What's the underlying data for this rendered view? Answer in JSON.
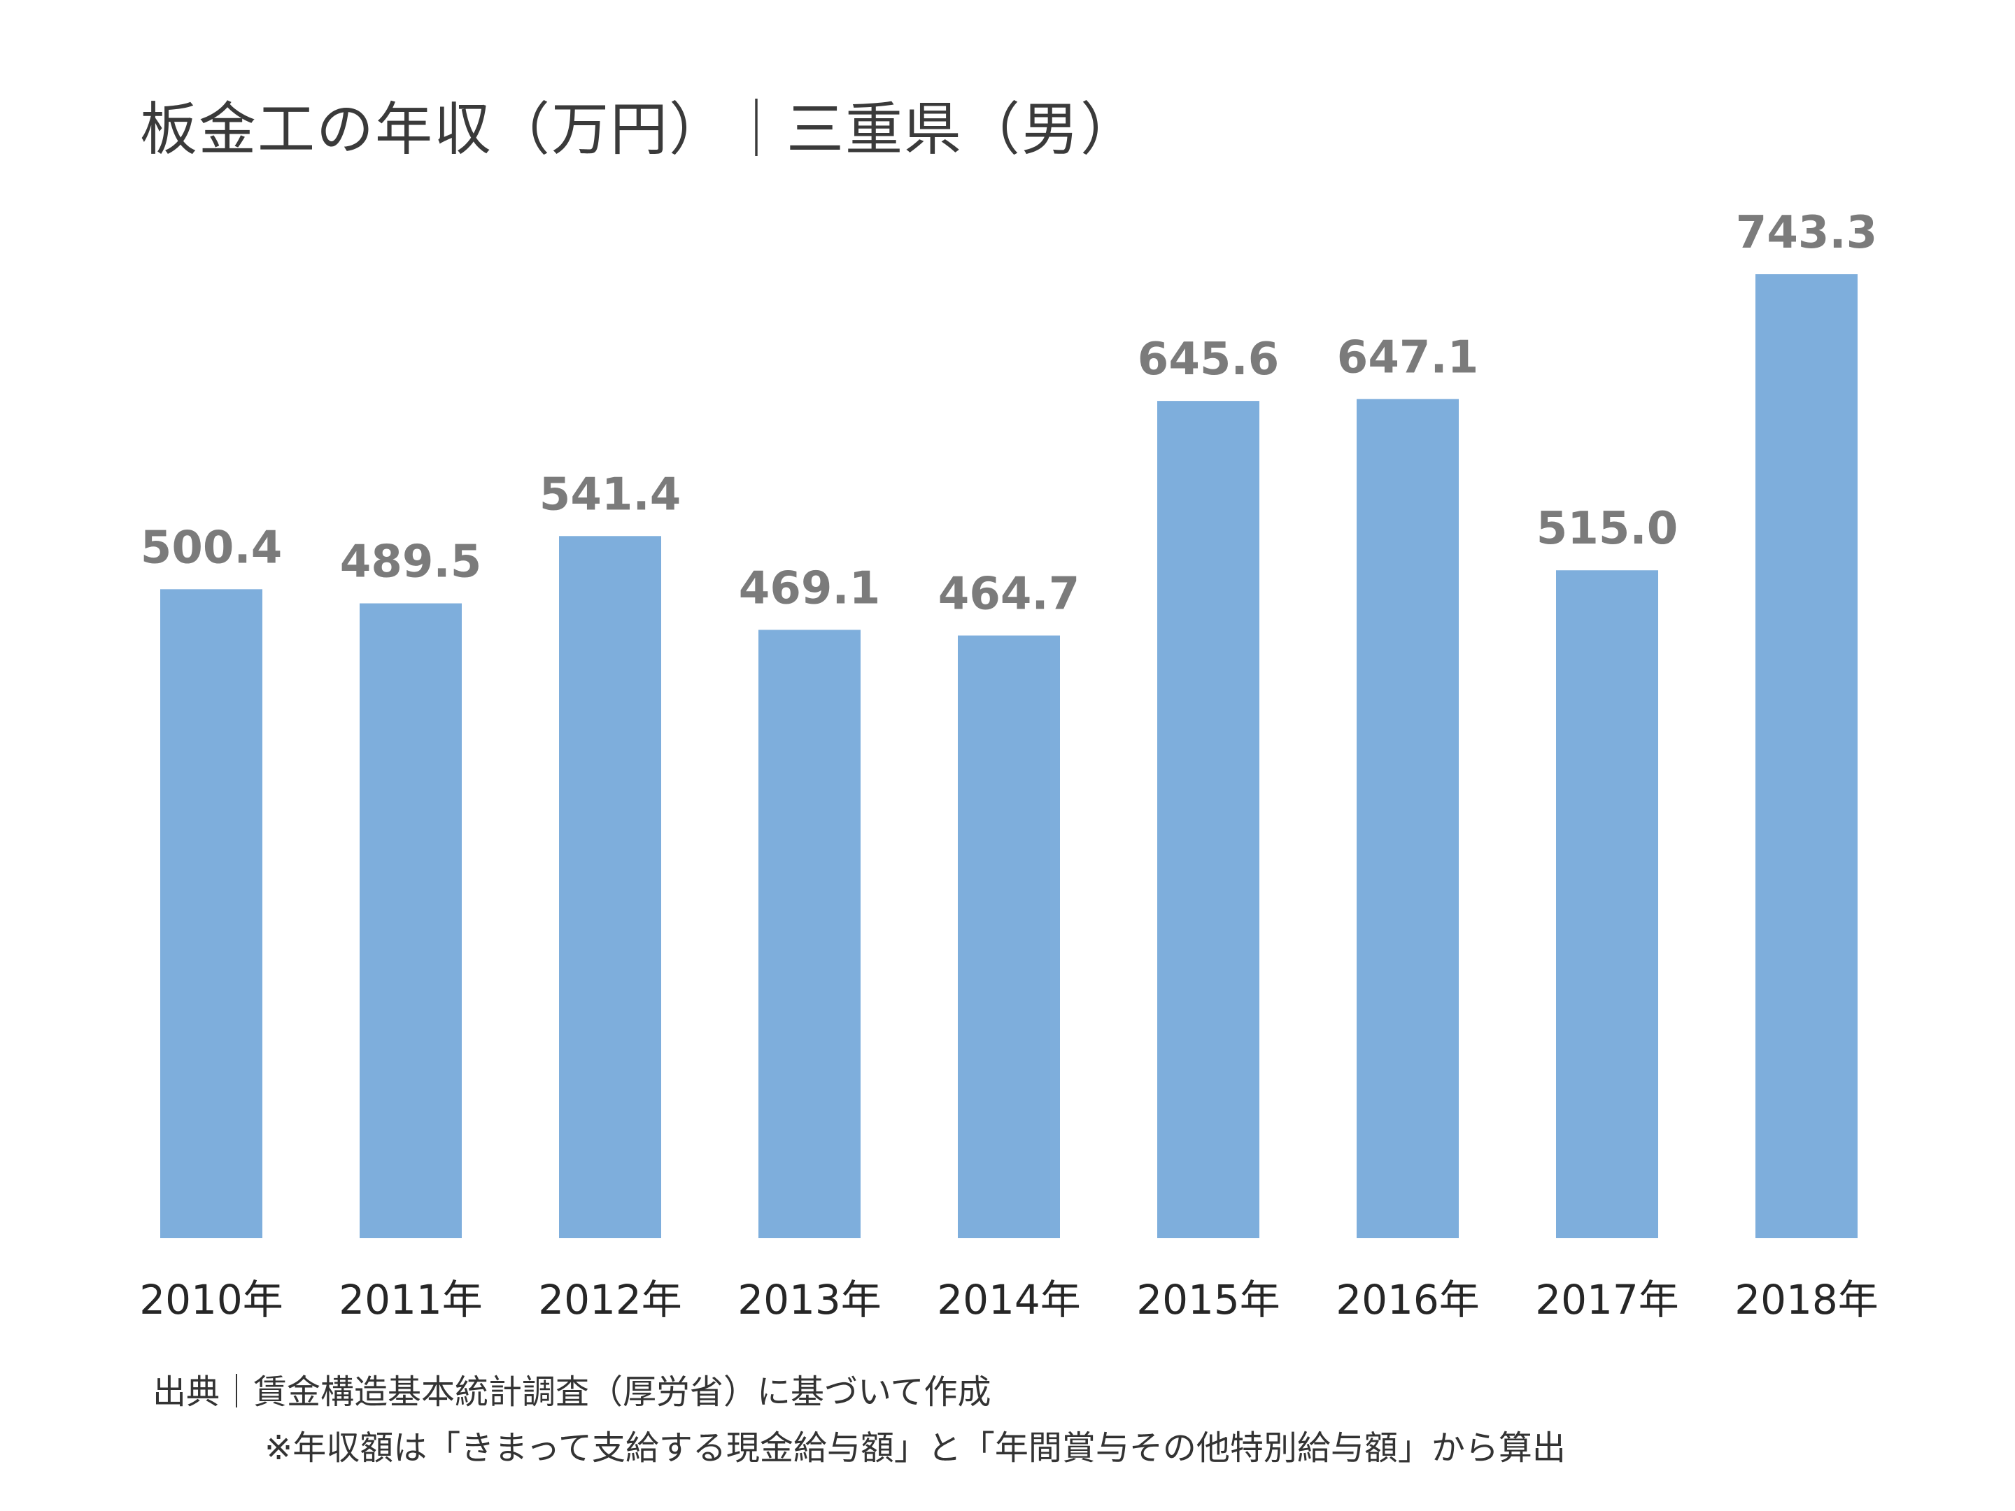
{
  "chart_data": {
    "type": "bar",
    "title": "板金工の年収（万円）｜三重県（男）",
    "categories": [
      "2010年",
      "2011年",
      "2012年",
      "2013年",
      "2014年",
      "2015年",
      "2016年",
      "2017年",
      "2018年"
    ],
    "values": [
      500.4,
      489.5,
      541.4,
      469.1,
      464.7,
      645.6,
      647.1,
      515.0,
      743.3
    ],
    "value_labels": [
      "500.4",
      "489.5",
      "541.4",
      "469.1",
      "464.7",
      "645.6",
      "647.1",
      "515.0",
      "743.3"
    ],
    "ylim": [
      0,
      743.3
    ],
    "bar_color": "#7eaedc",
    "label_color": "#7b7b7b",
    "grid": false,
    "legend": "none"
  },
  "footnotes": {
    "source": "出典｜賃金構造基本統計調査（厚労省）に基づいて作成",
    "note": "※年収額は「きまって支給する現金給与額」と「年間賞与その他特別給与額」から算出"
  }
}
